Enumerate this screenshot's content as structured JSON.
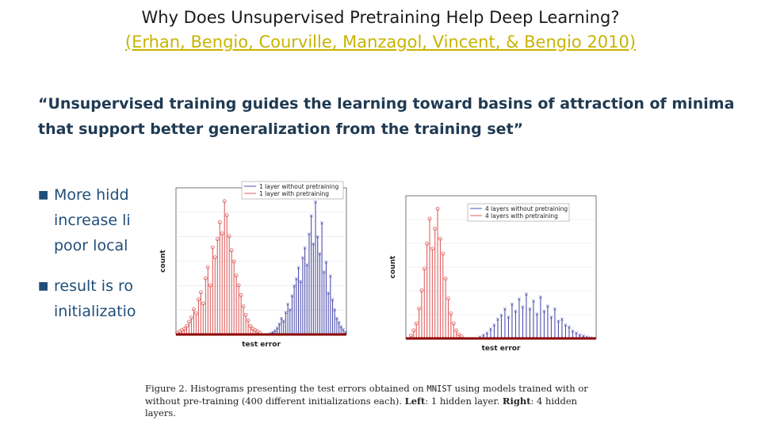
{
  "slide": {
    "title": "Why Does Unsupervised Pretraining Help Deep Learning?",
    "citation": "(Erhan, Bengio, Courville, Manzagol, Vincent, & Bengio 2010)",
    "quote": "“Unsupervised training guides the learning toward basins of attraction of minima that support better generalization from the training set”",
    "bullets": [
      {
        "lines": [
          "More hidd",
          "increase li",
          "poor local"
        ]
      },
      {
        "lines": [
          "result is ro",
          "initializatio"
        ]
      }
    ],
    "caption": {
      "prefix": "Figure 2.  Histograms presenting the test errors obtained on ",
      "dataset": "MNIST",
      "middle": " using models trained with or without pre-training (400 different initializations each).  ",
      "left_label": "Left",
      "left_text": ": 1 hidden layer.  ",
      "right_label": "Right",
      "right_text": ": 4 hidden layers."
    }
  },
  "colors": {
    "title": "#1a1a1a",
    "citation": "#c8b400",
    "text": "#1f3a52",
    "with_pretraining": "#e06060",
    "without_pretraining": "#5050b0",
    "baseline": "#8b0000"
  },
  "chart_data": [
    {
      "type": "bar",
      "xlabel": "test error",
      "ylabel": "count",
      "legend_position": "top-right",
      "series": [
        {
          "name": "1 layer without pretraining",
          "values": [
            1,
            2,
            3,
            5,
            8,
            12,
            10,
            16,
            22,
            18,
            28,
            35,
            40,
            48,
            38,
            55,
            62,
            50,
            72,
            85,
            65,
            95,
            70,
            58,
            80,
            45,
            52,
            30,
            42,
            25,
            18,
            12,
            9,
            6,
            4,
            2
          ]
        },
        {
          "name": "1 layer with pretraining",
          "values": [
            1,
            2,
            3,
            4,
            6,
            9,
            12,
            18,
            15,
            25,
            30,
            22,
            40,
            48,
            35,
            62,
            55,
            68,
            80,
            72,
            95,
            85,
            70,
            60,
            52,
            42,
            35,
            28,
            20,
            14,
            10,
            6,
            4,
            3,
            2,
            1
          ]
        }
      ]
    },
    {
      "type": "bar",
      "xlabel": "test error",
      "ylabel": "count",
      "legend_position": "top-right",
      "series": [
        {
          "name": "4 layers without pretraining",
          "values": [
            2,
            4,
            6,
            10,
            14,
            20,
            24,
            30,
            22,
            35,
            28,
            40,
            32,
            45,
            30,
            38,
            25,
            42,
            28,
            33,
            22,
            30,
            18,
            20,
            14,
            12,
            8,
            6,
            4,
            3,
            2,
            1
          ]
        },
        {
          "name": "4 layers with pretraining",
          "values": [
            3,
            8,
            15,
            30,
            48,
            70,
            95,
            120,
            90,
            110,
            130,
            100,
            85,
            60,
            40,
            25,
            15,
            8,
            4,
            2
          ]
        }
      ]
    }
  ]
}
